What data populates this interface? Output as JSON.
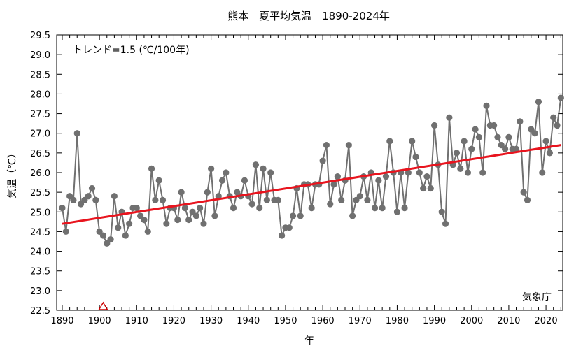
{
  "chart_data": {
    "type": "line",
    "title": "熊本　夏平均気温　1890-2024年",
    "xlabel": "年",
    "ylabel": "気温（℃）",
    "xlim": [
      1888.5,
      2024.5
    ],
    "ylim": [
      22.5,
      29.5
    ],
    "x_ticks": [
      1890,
      1900,
      1910,
      1920,
      1930,
      1940,
      1950,
      1960,
      1970,
      1980,
      1990,
      2000,
      2010,
      2020
    ],
    "y_ticks": [
      22.5,
      23.0,
      23.5,
      24.0,
      24.5,
      25.0,
      25.5,
      26.0,
      26.5,
      27.0,
      27.5,
      28.0,
      28.5,
      29.0,
      29.5
    ],
    "grid": false,
    "trend_annotation": "トレンド=1.5 (℃/100年)",
    "source_label": "気象庁",
    "colors": {
      "series": "#707070",
      "trend": "#e8141e",
      "marker": "#cc0000"
    },
    "series": [
      {
        "x": [
          1890,
          1891,
          1892,
          1893,
          1894,
          1895,
          1896,
          1897,
          1898,
          1899,
          1900,
          1901,
          1902,
          1903,
          1904,
          1905,
          1906,
          1907,
          1908,
          1909,
          1910,
          1911,
          1912,
          1913,
          1914,
          1915,
          1916,
          1917,
          1918,
          1919,
          1920,
          1921,
          1922,
          1923,
          1924,
          1925,
          1926,
          1927,
          1928,
          1929,
          1930,
          1931,
          1932,
          1933,
          1934,
          1935,
          1936,
          1937,
          1938,
          1939,
          1940,
          1941,
          1942,
          1943,
          1944,
          1945,
          1946,
          1947,
          1948,
          1949,
          1950,
          1951,
          1952,
          1953,
          1954,
          1955,
          1956,
          1957,
          1958,
          1959,
          1960,
          1961,
          1962,
          1963,
          1964,
          1965,
          1966,
          1967,
          1968,
          1969,
          1970,
          1971,
          1972,
          1973,
          1974,
          1975,
          1976,
          1977,
          1978,
          1979,
          1980,
          1981,
          1982,
          1983,
          1984,
          1985,
          1986,
          1987,
          1988,
          1989,
          1990,
          1991,
          1992,
          1993,
          1994,
          1995,
          1996,
          1997,
          1998,
          1999,
          2000,
          2001,
          2002,
          2003,
          2004,
          2005,
          2006,
          2007,
          2008,
          2009,
          2010,
          2011,
          2012,
          2013,
          2014,
          2015,
          2016,
          2017,
          2018,
          2019,
          2020,
          2021,
          2022,
          2023,
          2024
        ],
        "values": [
          25.1,
          24.5,
          25.4,
          25.3,
          27.0,
          25.2,
          25.3,
          25.4,
          25.6,
          25.3,
          24.5,
          24.4,
          24.2,
          24.3,
          25.4,
          24.6,
          25.0,
          24.4,
          24.7,
          25.1,
          25.1,
          24.9,
          24.8,
          24.5,
          26.1,
          25.3,
          25.8,
          25.3,
          24.7,
          25.1,
          25.1,
          24.8,
          25.5,
          25.1,
          24.8,
          25.0,
          24.9,
          25.1,
          24.7,
          25.5,
          26.1,
          24.9,
          25.4,
          25.8,
          26.0,
          25.4,
          25.1,
          25.5,
          25.4,
          25.8,
          25.4,
          25.2,
          26.2,
          25.1,
          26.1,
          25.3,
          26.0,
          25.3,
          25.3,
          24.4,
          24.6,
          24.6,
          24.9,
          25.6,
          24.9,
          25.7,
          25.7,
          25.1,
          25.7,
          25.7,
          26.3,
          26.7,
          25.2,
          25.7,
          25.9,
          25.3,
          25.8,
          26.7,
          24.9,
          25.3,
          25.4,
          25.9,
          25.3,
          26.0,
          25.1,
          25.8,
          25.1,
          25.9,
          26.8,
          26.0,
          25.0,
          26.0,
          25.1,
          26.0,
          26.8,
          26.4,
          26.0,
          25.6,
          25.9,
          25.6,
          27.2,
          26.2,
          25.0,
          24.7,
          27.4,
          26.2,
          26.5,
          26.1,
          26.8,
          26.0,
          26.6,
          27.1,
          26.9,
          26.0,
          27.7,
          27.2,
          27.2,
          26.9,
          26.7,
          26.6,
          26.9,
          26.6,
          26.6,
          27.3,
          25.5,
          25.3,
          27.1,
          27.0,
          27.8,
          26.0,
          26.8,
          26.5,
          27.4,
          27.2,
          27.9
        ]
      }
    ],
    "trend": {
      "x": [
        1890,
        2024
      ],
      "y": [
        24.7,
        26.7
      ]
    },
    "markers": [
      {
        "x": 1901,
        "y": 22.5,
        "shape": "open-triangle"
      }
    ]
  }
}
